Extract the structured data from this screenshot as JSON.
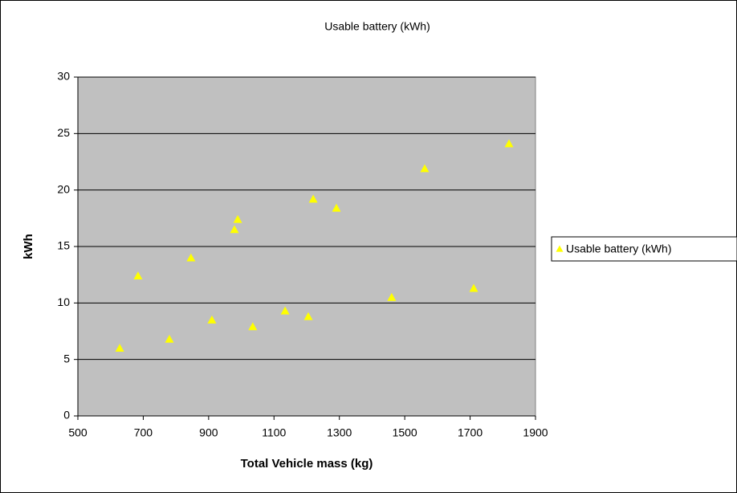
{
  "chart_data": {
    "type": "scatter",
    "title": "Usable battery (kWh)",
    "x_label": "Total Vehicle mass (kg)",
    "y_label": "kWh",
    "series": [
      {
        "name": "Usable battery (kWh)",
        "color": "#ffff00",
        "x": [
          628,
          684,
          780,
          846,
          910,
          979,
          989,
          1035,
          1134,
          1205,
          1220,
          1291,
          1460,
          1561,
          1711,
          1819
        ],
        "values": [
          6.0,
          12.4,
          6.8,
          14.0,
          8.5,
          16.5,
          17.4,
          7.9,
          9.3,
          8.8,
          19.2,
          18.4,
          10.5,
          21.9,
          11.3,
          24.1
        ]
      }
    ],
    "xlim": [
      500,
      1900
    ],
    "xticks": [
      500,
      700,
      900,
      1100,
      1300,
      1500,
      1700,
      1900
    ],
    "ylim": [
      0,
      30
    ],
    "yticks": [
      0,
      5,
      10,
      15,
      20,
      25,
      30
    ],
    "grid": true,
    "legend": "right"
  }
}
